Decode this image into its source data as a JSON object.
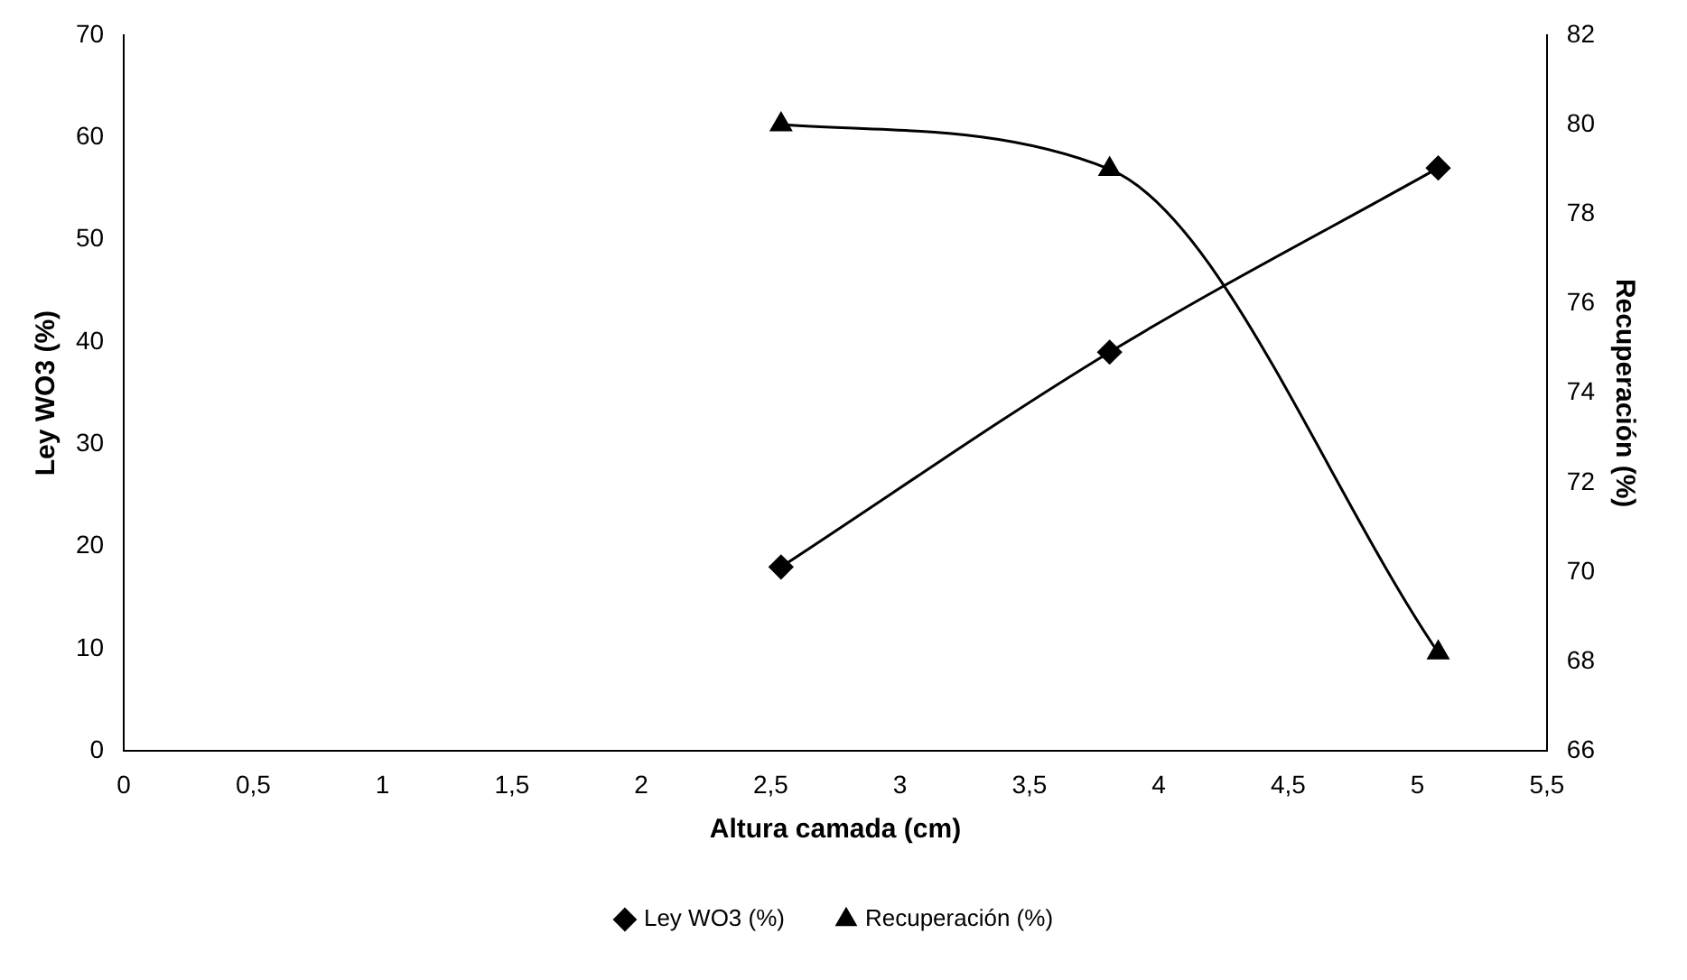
{
  "chart_data": {
    "type": "line",
    "xlabel": "Altura camada (cm)",
    "ylabel": "Ley WO3 (%)",
    "y2label": "Recuperación (%)",
    "x": [
      2.54,
      3.81,
      5.08
    ],
    "series": [
      {
        "name": "Ley WO3 (%)",
        "color": "#000000",
        "values": [
          18,
          39,
          57
        ],
        "marker": "diamond"
      },
      {
        "name": "Recuperación (%)",
        "color": "#000000",
        "values": [
          80,
          79,
          68.2
        ],
        "axis": "y2",
        "marker": "triangle"
      }
    ],
    "xlim": [
      0,
      5.5
    ],
    "xticks": [
      {
        "value": 0,
        "label": "0"
      },
      {
        "value": 0.5,
        "label": "0,5"
      },
      {
        "value": 1,
        "label": "1"
      },
      {
        "value": 1.5,
        "label": "1,5"
      },
      {
        "value": 2,
        "label": "2"
      },
      {
        "value": 2.5,
        "label": "2,5"
      },
      {
        "value": 3,
        "label": "3"
      },
      {
        "value": 3.5,
        "label": "3,5"
      },
      {
        "value": 4,
        "label": "4"
      },
      {
        "value": 4.5,
        "label": "4,5"
      },
      {
        "value": 5,
        "label": "5"
      },
      {
        "value": 5.5,
        "label": "5,5"
      }
    ],
    "ylim": [
      0,
      70
    ],
    "yticks": [
      0,
      10,
      20,
      30,
      40,
      50,
      60,
      70
    ],
    "y2lim": [
      66,
      82
    ],
    "y2ticks": [
      66,
      68,
      70,
      72,
      74,
      76,
      78,
      80,
      82
    ],
    "grid": false,
    "legend": "bottom",
    "line_style": "solid"
  }
}
